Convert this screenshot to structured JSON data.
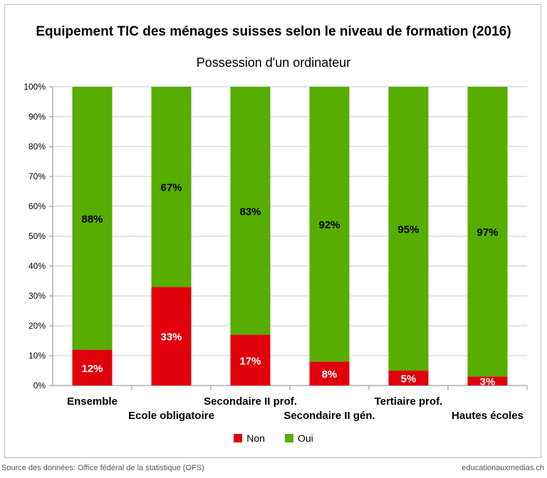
{
  "title": "Equipement TIC des ménages suisses selon le niveau de formation (2016)",
  "subtitle": "Possession d'un ordinateur",
  "colors": {
    "non": "#e0000b",
    "oui": "#57ad00",
    "grid": "#c8c8c8"
  },
  "chart_data": {
    "type": "bar",
    "stacked": true,
    "categories": [
      "Ensemble",
      "Ecole obligatoire",
      "Secondaire II prof.",
      "Secondaire II gén.",
      "Tertiaire prof.",
      "Hautes écoles"
    ],
    "series": [
      {
        "name": "Non",
        "values": [
          12,
          33,
          17,
          8,
          5,
          3
        ],
        "labels": [
          "12%",
          "33%",
          "17%",
          "8%",
          "5%",
          "3%"
        ]
      },
      {
        "name": "Oui",
        "values": [
          88,
          67,
          83,
          92,
          95,
          97
        ],
        "labels": [
          "88%",
          "67%",
          "83%",
          "92%",
          "95%",
          "97%"
        ]
      }
    ],
    "ylim": [
      0,
      100
    ],
    "yticks": [
      "0%",
      "10%",
      "20%",
      "30%",
      "40%",
      "50%",
      "60%",
      "70%",
      "80%",
      "90%",
      "100%"
    ],
    "grid": true,
    "legend_position": "bottom"
  },
  "footer": {
    "source": "Source des données: Office fédéral de la statistique (OFS)",
    "site": "educationauxmedias.ch"
  }
}
